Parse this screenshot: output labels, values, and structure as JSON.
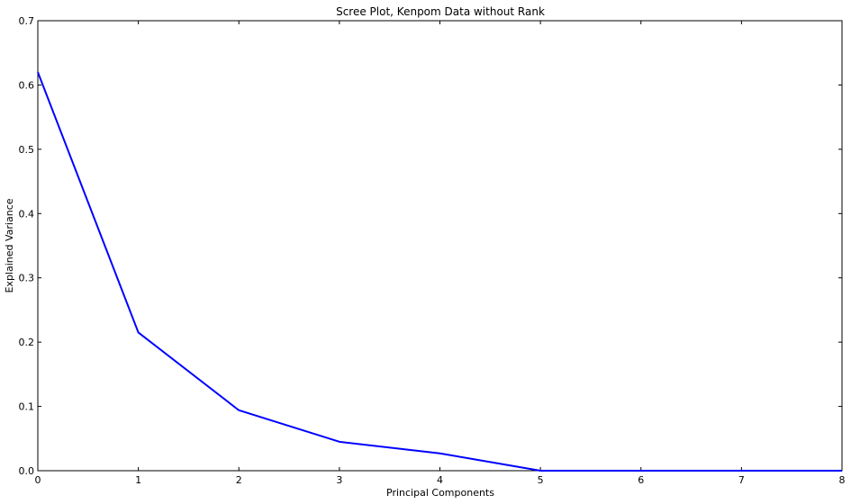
{
  "chart_data": {
    "type": "line",
    "title": "Scree Plot, Kenpom Data without Rank",
    "xlabel": "Principal Components",
    "ylabel": "Explained Variance",
    "xlim": [
      0,
      8
    ],
    "ylim": [
      0,
      0.7
    ],
    "xticks": [
      "0",
      "1",
      "2",
      "3",
      "4",
      "5",
      "6",
      "7",
      "8"
    ],
    "yticks": [
      "0.0",
      "0.1",
      "0.2",
      "0.3",
      "0.4",
      "0.5",
      "0.6",
      "0.7"
    ],
    "grid": false,
    "line_color": "#0000ff",
    "series": [
      {
        "x": [
          0,
          1,
          2,
          3,
          4,
          5,
          6,
          7,
          8
        ],
        "values": [
          0.62,
          0.215,
          0.094,
          0.045,
          0.027,
          0.0,
          0.0,
          0.0,
          0.0
        ]
      }
    ]
  }
}
